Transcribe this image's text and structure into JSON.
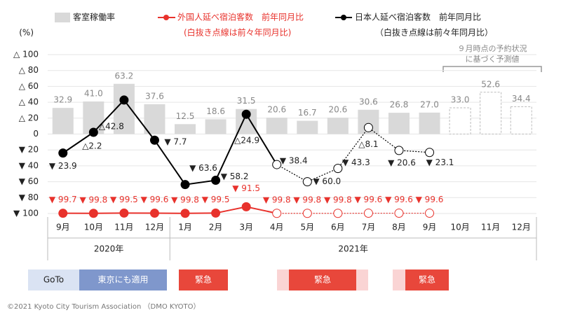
{
  "chart_data": {
    "type": "bar_line",
    "y_axis_label": "(%)",
    "categories": [
      "9月",
      "10月",
      "11月",
      "12月",
      "1月",
      "2月",
      "3月",
      "4月",
      "5月",
      "6月",
      "7月",
      "8月",
      "9月",
      "10月",
      "11月",
      "12月"
    ],
    "year_groups": [
      {
        "label": "2020年",
        "count": 4
      },
      {
        "label": "2021年",
        "count": 12
      }
    ],
    "ylim": [
      -100,
      100
    ],
    "yticks": [
      {
        "value": 100,
        "label": "△ 100"
      },
      {
        "value": 80,
        "label": "△ 80"
      },
      {
        "value": 60,
        "label": "△ 60"
      },
      {
        "value": 40,
        "label": "△ 40"
      },
      {
        "value": 20,
        "label": "△ 20"
      },
      0,
      {
        "value": -20,
        "label": "▼ 20"
      },
      {
        "value": -40,
        "label": "▼ 40"
      },
      {
        "value": -60,
        "label": "▼ 60"
      },
      {
        "value": -80,
        "label": "▼ 80"
      },
      {
        "value": -100,
        "label": "▼ 100"
      }
    ],
    "grid": true,
    "series": [
      {
        "name": "客室稼働率",
        "type": "bar",
        "color": "#d9d9d9",
        "forecast_from": 13,
        "values": [
          32.9,
          41.0,
          63.2,
          37.6,
          12.5,
          18.6,
          31.5,
          20.6,
          16.7,
          20.6,
          30.6,
          26.8,
          27.0,
          33.0,
          52.6,
          34.4
        ],
        "value_labels": [
          "32.9",
          "41.0",
          "63.2",
          "37.6",
          "12.5",
          "18.6",
          "31.5",
          "20.6",
          "16.7",
          "20.6",
          "30.6",
          "26.8",
          "27.0",
          "33.0",
          "52.6",
          "34.4"
        ]
      },
      {
        "name": "外国人延べ宿泊客数　前年同月比",
        "note": "(白抜き点線は前々年同月比)",
        "type": "line",
        "color": "#e8322c",
        "dotted_from": 7,
        "values": [
          -99.7,
          -99.8,
          -99.5,
          -99.6,
          -99.8,
          -99.5,
          -91.5,
          -99.8,
          -99.8,
          -99.8,
          -99.6,
          -99.6,
          -99.6,
          null,
          null,
          null
        ],
        "value_labels": [
          "▼ 99.7",
          "▼ 99.8",
          "▼ 99.5",
          "▼ 99.6",
          "▼ 99.8",
          "▼ 99.5",
          "▼ 91.5",
          "▼ 99.8",
          "▼ 99.8",
          "▼ 99.8",
          "▼ 99.6",
          "▼ 99.6",
          "▼ 99.6",
          null,
          null,
          null
        ]
      },
      {
        "name": "日本人延べ宿泊客数　前年同月比",
        "note": "（白抜き点線は前々年同月比）",
        "type": "line",
        "color": "#000000",
        "dotted_from": 7,
        "values": [
          -23.9,
          2.2,
          42.8,
          -7.7,
          -63.6,
          -58.2,
          24.9,
          -38.4,
          -60.0,
          -43.3,
          8.1,
          -20.6,
          -23.1,
          null,
          null,
          null
        ],
        "value_labels": [
          "▼ 23.9",
          "△2.2",
          "△42.8",
          "▼ 7.7",
          "▼ 63.6",
          "▼ 58.2",
          "△24.9",
          "▼ 38.4",
          "▼ 60.0",
          "▼ 43.3",
          "△8.1",
          "▼ 20.6",
          "▼ 23.1",
          null,
          null,
          null
        ]
      }
    ],
    "annotation": [
      "９月時点の予約状況",
      "に基づく予測値"
    ],
    "periods": [
      "GoTo",
      "東京にも適用",
      "緊急",
      "緊急",
      "緊急"
    ],
    "footer": "©2021 Kyoto City Tourism Association （DMO KYOTO）"
  }
}
